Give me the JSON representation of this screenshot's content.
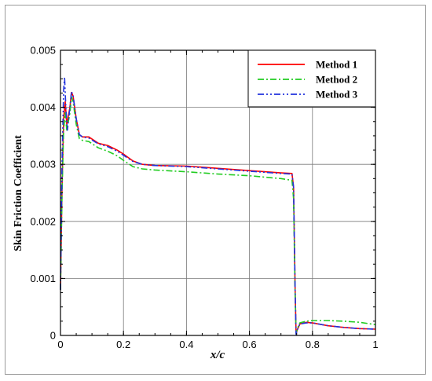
{
  "chart_data": {
    "type": "line",
    "title": "",
    "xlabel": "x/c",
    "ylabel": "Skin Friction Coefficient",
    "xlim": [
      0,
      1
    ],
    "ylim": [
      0,
      0.005
    ],
    "x_ticks": [
      "0",
      "0.2",
      "0.4",
      "0.6",
      "0.8",
      "1"
    ],
    "y_ticks": [
      "0",
      "0.001",
      "0.002",
      "0.003",
      "0.004",
      "0.005"
    ],
    "grid": true,
    "legend_position": "top-right",
    "series": [
      {
        "name": "Method 1",
        "color": "#ff0000",
        "dash": "solid",
        "points": [
          [
            0,
            0.0008
          ],
          [
            0.005,
            0.0026
          ],
          [
            0.01,
            0.0038
          ],
          [
            0.015,
            0.0041
          ],
          [
            0.02,
            0.0037
          ],
          [
            0.03,
            0.004
          ],
          [
            0.035,
            0.00426
          ],
          [
            0.04,
            0.0042
          ],
          [
            0.05,
            0.0038
          ],
          [
            0.06,
            0.00352
          ],
          [
            0.07,
            0.00348
          ],
          [
            0.09,
            0.00348
          ],
          [
            0.12,
            0.00337
          ],
          [
            0.15,
            0.00333
          ],
          [
            0.18,
            0.00325
          ],
          [
            0.2,
            0.00318
          ],
          [
            0.23,
            0.00306
          ],
          [
            0.26,
            0.003
          ],
          [
            0.3,
            0.00298
          ],
          [
            0.4,
            0.00297
          ],
          [
            0.5,
            0.00293
          ],
          [
            0.6,
            0.00289
          ],
          [
            0.7,
            0.00285
          ],
          [
            0.735,
            0.00284
          ],
          [
            0.74,
            0.0026
          ],
          [
            0.745,
            0.0008
          ],
          [
            0.748,
            3e-05
          ],
          [
            0.752,
            0.0001
          ],
          [
            0.76,
            0.0002
          ],
          [
            0.78,
            0.00023
          ],
          [
            0.8,
            0.00022
          ],
          [
            0.85,
            0.00017
          ],
          [
            0.9,
            0.00014
          ],
          [
            0.95,
            0.00012
          ],
          [
            1.0,
            0.00011
          ]
        ]
      },
      {
        "name": "Method 2",
        "color": "#22cc22",
        "dash": "dashdot",
        "points": [
          [
            0,
            0.0008
          ],
          [
            0.005,
            0.0025
          ],
          [
            0.01,
            0.0036
          ],
          [
            0.015,
            0.0039
          ],
          [
            0.02,
            0.0036
          ],
          [
            0.03,
            0.0039
          ],
          [
            0.035,
            0.00418
          ],
          [
            0.04,
            0.0041
          ],
          [
            0.05,
            0.0037
          ],
          [
            0.06,
            0.00345
          ],
          [
            0.07,
            0.00342
          ],
          [
            0.09,
            0.0034
          ],
          [
            0.12,
            0.00329
          ],
          [
            0.15,
            0.00323
          ],
          [
            0.18,
            0.00315
          ],
          [
            0.2,
            0.00307
          ],
          [
            0.23,
            0.00296
          ],
          [
            0.26,
            0.00292
          ],
          [
            0.3,
            0.0029
          ],
          [
            0.4,
            0.00287
          ],
          [
            0.5,
            0.00283
          ],
          [
            0.6,
            0.0028
          ],
          [
            0.7,
            0.00275
          ],
          [
            0.735,
            0.00272
          ],
          [
            0.74,
            0.0024
          ],
          [
            0.745,
            0.0007
          ],
          [
            0.748,
            4e-05
          ],
          [
            0.752,
            0.00012
          ],
          [
            0.76,
            0.00022
          ],
          [
            0.78,
            0.00025
          ],
          [
            0.8,
            0.00026
          ],
          [
            0.85,
            0.00026
          ],
          [
            0.9,
            0.00025
          ],
          [
            0.95,
            0.00023
          ],
          [
            1.0,
            0.00019
          ]
        ]
      },
      {
        "name": "Method 3",
        "color": "#2233dd",
        "dash": "dashdotdot",
        "points": [
          [
            0,
            0.0008
          ],
          [
            0.005,
            0.003
          ],
          [
            0.01,
            0.0043
          ],
          [
            0.013,
            0.00453
          ],
          [
            0.017,
            0.004
          ],
          [
            0.022,
            0.0036
          ],
          [
            0.03,
            0.004
          ],
          [
            0.035,
            0.00428
          ],
          [
            0.04,
            0.0042
          ],
          [
            0.05,
            0.0038
          ],
          [
            0.06,
            0.00352
          ],
          [
            0.07,
            0.00348
          ],
          [
            0.09,
            0.00346
          ],
          [
            0.12,
            0.00336
          ],
          [
            0.15,
            0.00331
          ],
          [
            0.18,
            0.00323
          ],
          [
            0.2,
            0.00316
          ],
          [
            0.23,
            0.00305
          ],
          [
            0.26,
            0.003
          ],
          [
            0.3,
            0.00298
          ],
          [
            0.4,
            0.00296
          ],
          [
            0.5,
            0.00292
          ],
          [
            0.6,
            0.00288
          ],
          [
            0.7,
            0.00284
          ],
          [
            0.735,
            0.00283
          ],
          [
            0.74,
            0.0026
          ],
          [
            0.745,
            0.0008
          ],
          [
            0.748,
            2e-05
          ],
          [
            0.752,
            0.0001
          ],
          [
            0.76,
            0.0002
          ],
          [
            0.78,
            0.00022
          ],
          [
            0.8,
            0.00022
          ],
          [
            0.85,
            0.00017
          ],
          [
            0.9,
            0.00014
          ],
          [
            0.95,
            0.00012
          ],
          [
            1.0,
            0.00011
          ]
        ]
      }
    ]
  }
}
